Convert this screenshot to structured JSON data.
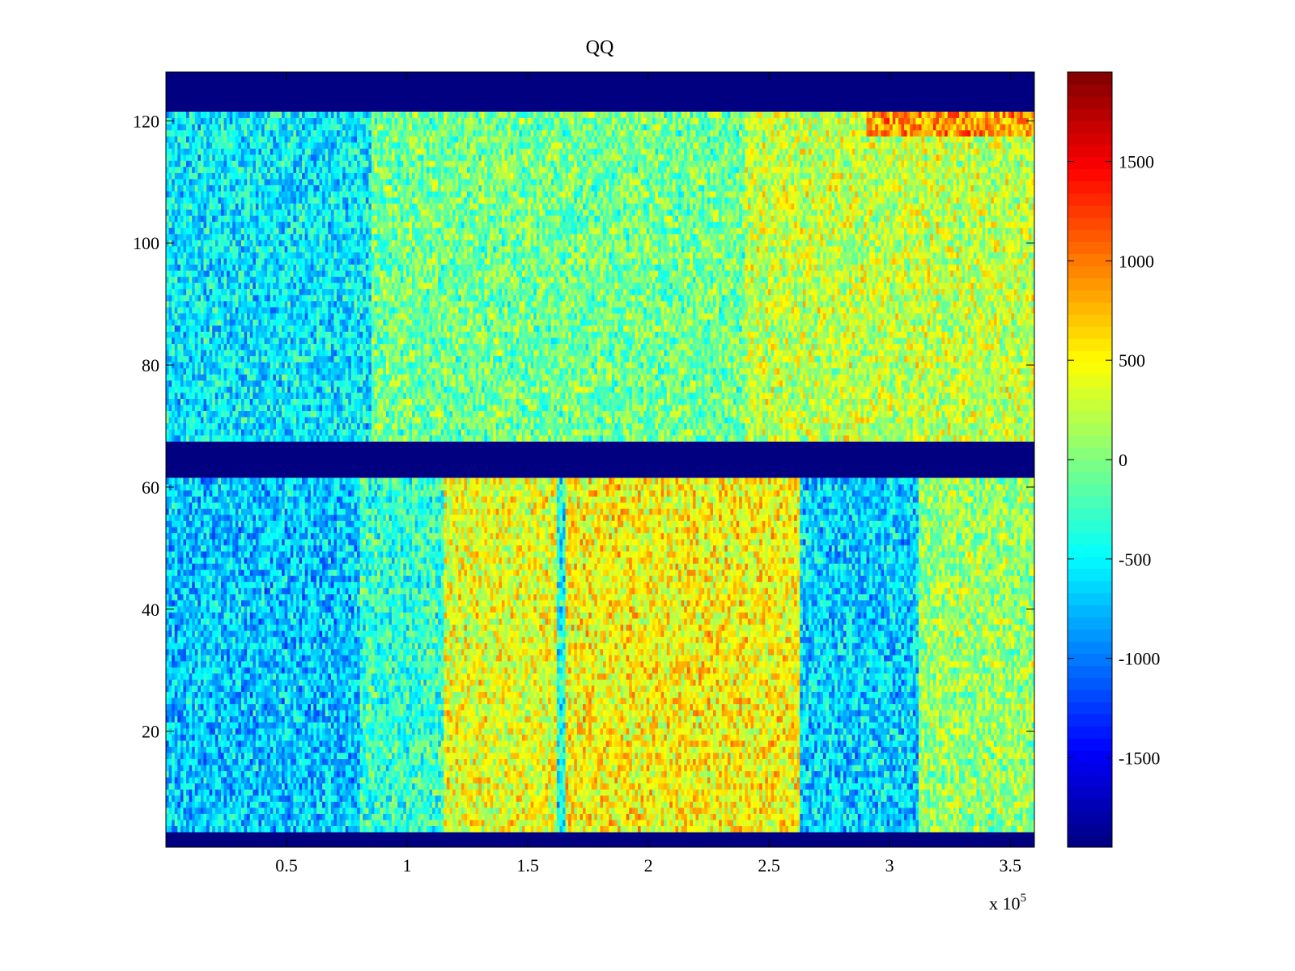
{
  "chart_data": {
    "type": "heatmap",
    "title": "QQ",
    "xlabel": "",
    "ylabel": "",
    "xlim": [
      0,
      360000
    ],
    "ylim": [
      1,
      128
    ],
    "x_ticks": [
      50000,
      100000,
      150000,
      200000,
      250000,
      300000,
      350000
    ],
    "x_tick_labels": [
      "0.5",
      "1",
      "1.5",
      "2",
      "2.5",
      "3",
      "3.5"
    ],
    "x_exponent_label": {
      "base": "x 10",
      "exp": "5"
    },
    "y_ticks": [
      20,
      40,
      60,
      80,
      100,
      120
    ],
    "y_tick_labels": [
      "20",
      "40",
      "60",
      "80",
      "100",
      "120"
    ],
    "colormap": "jet",
    "clim": [
      -1950,
      1950
    ],
    "colorbar": {
      "ticks": [
        -1500,
        -1000,
        -500,
        0,
        500,
        1000,
        1500
      ],
      "tick_labels": [
        "-1500",
        "-1000",
        "-500",
        "0",
        "500",
        "1000",
        "1500"
      ]
    },
    "masked_rows": [
      [
        1,
        3.5
      ],
      [
        61.5,
        67.5
      ],
      [
        121.5,
        128
      ]
    ],
    "masked_value": -1950,
    "lower_block": {
      "rows": [
        3.5,
        61.5
      ],
      "column_segments": [
        {
          "x_range": [
            0,
            80000
          ],
          "mean": -700
        },
        {
          "x_range": [
            80000,
            115000
          ],
          "mean": -300
        },
        {
          "x_range": [
            115000,
            162000
          ],
          "mean": 400
        },
        {
          "x_range": [
            162000,
            165000
          ],
          "mean": -450
        },
        {
          "x_range": [
            165000,
            262000
          ],
          "mean": 500
        },
        {
          "x_range": [
            262000,
            312000
          ],
          "mean": -650
        },
        {
          "x_range": [
            312000,
            360000
          ],
          "mean": 100
        }
      ]
    },
    "upper_block": {
      "rows": [
        67.5,
        121.5
      ],
      "column_segments": [
        {
          "x_range": [
            0,
            85000
          ],
          "mean": -550
        },
        {
          "x_range": [
            85000,
            240000
          ],
          "mean": -50
        },
        {
          "x_range": [
            240000,
            360000
          ],
          "mean": 250
        }
      ],
      "notable_regions": [
        {
          "x_range": [
            290000,
            360000
          ],
          "y_range": [
            117,
            121.5
          ],
          "mean": 900
        }
      ]
    }
  }
}
